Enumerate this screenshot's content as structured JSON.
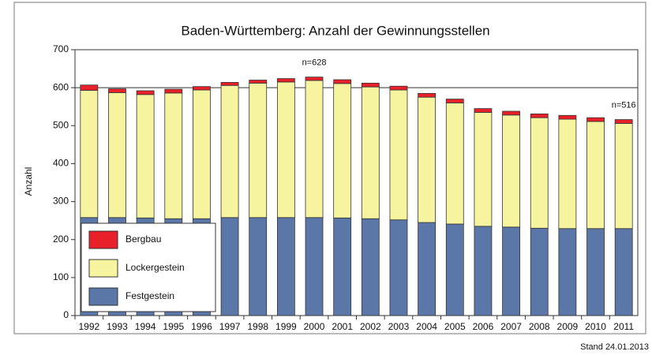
{
  "chart_data": {
    "type": "stacked_bar",
    "title": "Baden-Württemberg: Anzahl der Gewinnungsstellen",
    "ylabel": "Anzahl",
    "footnote": "Stand 24.01.2013",
    "categories": [
      "1992",
      "1993",
      "1994",
      "1995",
      "1996",
      "1997",
      "1998",
      "1999",
      "2000",
      "2001",
      "2002",
      "2003",
      "2004",
      "2005",
      "2006",
      "2007",
      "2008",
      "2009",
      "2010",
      "2011"
    ],
    "series": [
      {
        "name": "Festgestein",
        "color": "#5b77a8",
        "values": [
          258,
          258,
          257,
          255,
          255,
          258,
          258,
          258,
          258,
          257,
          255,
          252,
          245,
          241,
          235,
          233,
          230,
          229,
          229,
          229
        ]
      },
      {
        "name": "Lockergestein",
        "color": "#f7f4a0",
        "values": [
          335,
          329,
          325,
          331,
          339,
          348,
          354,
          357,
          361,
          354,
          347,
          342,
          330,
          319,
          300,
          295,
          291,
          288,
          282,
          277
        ]
      },
      {
        "name": "Bergbau",
        "color": "#e8202a",
        "values": [
          14,
          10,
          10,
          10,
          9,
          8,
          8,
          9,
          9,
          10,
          10,
          10,
          10,
          10,
          10,
          10,
          10,
          10,
          10,
          10
        ]
      }
    ],
    "annotations": [
      {
        "text": "n=628",
        "x": "2000"
      },
      {
        "text": "n=516",
        "x": "2011"
      }
    ],
    "ylim": [
      0,
      700
    ],
    "yticks": [
      0,
      100,
      200,
      300,
      400,
      500,
      600,
      700
    ],
    "reference_line": 600,
    "legend": "lower left"
  }
}
